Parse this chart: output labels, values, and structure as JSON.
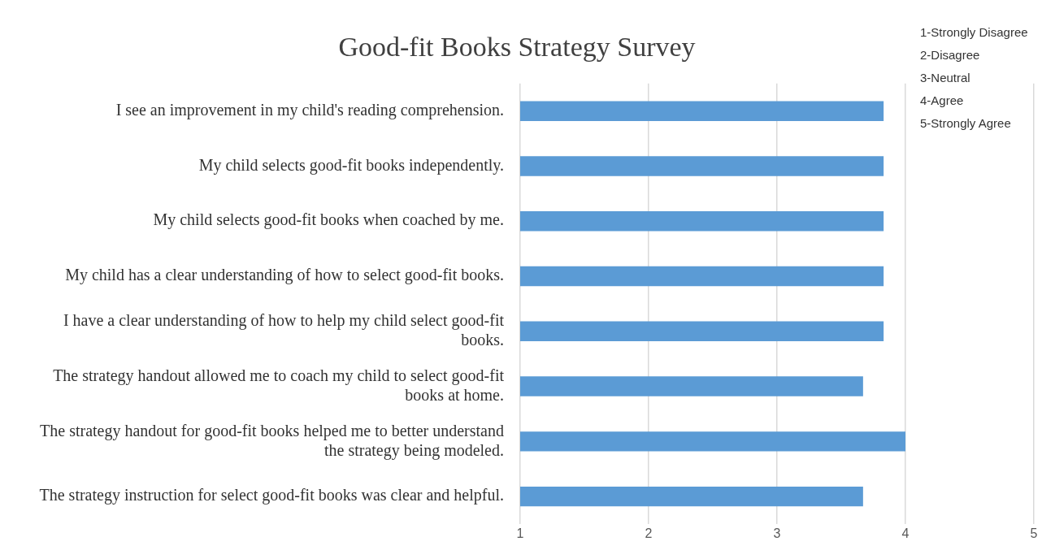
{
  "chart_data": {
    "type": "bar",
    "orientation": "horizontal",
    "title": "Good-fit Books Strategy Survey",
    "categories": [
      "I see an improvement in my child's reading comprehension.",
      "My child selects good-fit books independently.",
      "My child selects good-fit books when coached by me.",
      "My child has a clear understanding of how to select good-fit books.",
      "I have a clear understanding of how to help my child select good-fit books.",
      "The strategy handout allowed me to coach my child to select good-fit books at home.",
      "The strategy handout for good-fit books helped me to better understand the strategy being modeled.",
      "The strategy instruction for select good-fit books was clear and helpful."
    ],
    "values": [
      3.83,
      3.83,
      3.83,
      3.83,
      3.83,
      3.67,
      4,
      3.67
    ],
    "color": "#5b9bd5",
    "xlim": [
      1,
      5
    ],
    "xticks": [
      1,
      2,
      3,
      4,
      5
    ],
    "grid": "x",
    "legend": false,
    "annotations": [
      "1-Strongly Disagree",
      "2-Disagree",
      "3-Neutral",
      "4-Agree",
      "5-Strongly Agree"
    ]
  }
}
